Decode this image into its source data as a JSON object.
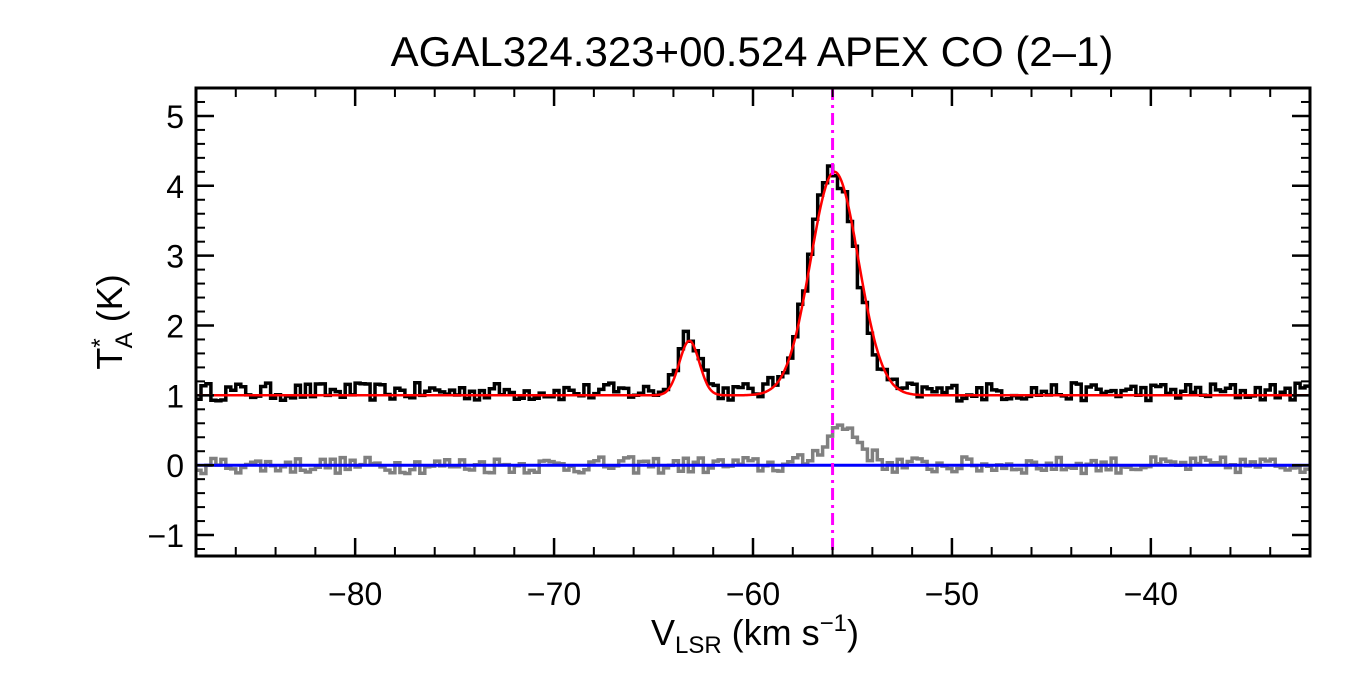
{
  "chart_data": {
    "type": "line",
    "title": "AGAL324.323+00.524  APEX CO (2–1)",
    "xlabel": {
      "main": "V",
      "sub": "LSR",
      "unit": " (km s",
      "sup": "−1",
      "close": ")"
    },
    "ylabel": {
      "main": "T",
      "sup": "*",
      "sub": "A",
      "unit": " (K)"
    },
    "xlim": [
      -88,
      -32
    ],
    "ylim": [
      -1.3,
      5.4
    ],
    "xticks": [
      -80,
      -70,
      -60,
      -50,
      -40
    ],
    "xtick_labels": [
      "−80",
      "−70",
      "−60",
      "−50",
      "−40"
    ],
    "yticks": [
      -1,
      0,
      1,
      2,
      3,
      4,
      5
    ],
    "ytick_labels": [
      "−1",
      "0",
      "1",
      "2",
      "3",
      "4",
      "5"
    ],
    "grid": false,
    "series": [
      {
        "kind": "step",
        "color": "#000000",
        "baseline": 1.05,
        "noise": 0.13,
        "peaks": [
          {
            "center": -56.0,
            "amplitude": 3.2,
            "sigma": 1.15
          },
          {
            "center": -63.2,
            "amplitude": 0.85,
            "sigma": 0.55
          }
        ]
      },
      {
        "kind": "step",
        "color": "#808080",
        "baseline": 0.0,
        "noise": 0.12,
        "peaks": [
          {
            "center": -55.5,
            "amplitude": 0.55,
            "sigma": 0.9
          }
        ]
      },
      {
        "kind": "fit",
        "color": "#ff0000",
        "baseline": 1.0,
        "peaks": [
          {
            "center": -55.9,
            "amplitude": 3.2,
            "sigma": 1.2
          },
          {
            "center": -63.2,
            "amplitude": 0.78,
            "sigma": 0.5
          }
        ]
      },
      {
        "kind": "hline",
        "color": "#0000ff",
        "y": 0
      }
    ],
    "marker_line": {
      "x": -56.0,
      "color": "#ff00ff",
      "style": "dash-dot"
    }
  }
}
